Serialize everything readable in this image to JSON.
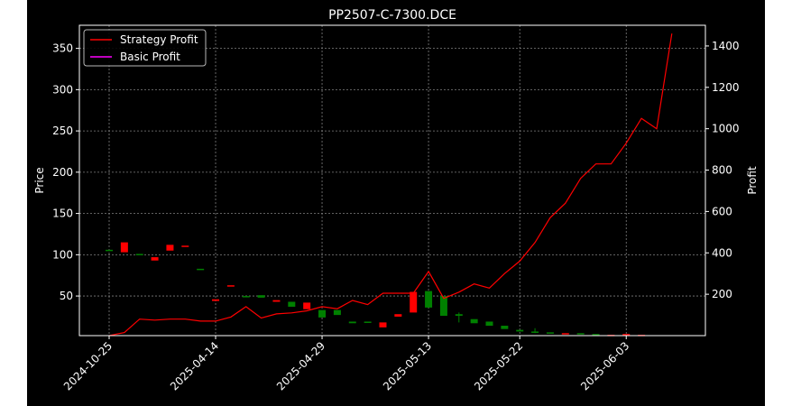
{
  "chart_data": {
    "type": "candlestick+line",
    "title": "PP2507-C-7300.DCE",
    "left_axis": {
      "label": "Price",
      "ylim": [
        2,
        378
      ],
      "ticks": [
        50,
        100,
        150,
        200,
        250,
        300,
        350
      ]
    },
    "right_axis": {
      "label": "Profit",
      "ylim": [
        0,
        1500
      ],
      "ticks": [
        200,
        400,
        600,
        800,
        1000,
        1200,
        1400
      ]
    },
    "x_tick_labels": [
      {
        "index": 0,
        "label": "2024-10-25"
      },
      {
        "index": 7,
        "label": "2025-04-14"
      },
      {
        "index": 14,
        "label": "2025-04-29"
      },
      {
        "index": 21,
        "label": "2025-05-13"
      },
      {
        "index": 27,
        "label": "2025-05-22"
      },
      {
        "index": 34,
        "label": "2025-06-03"
      }
    ],
    "grid": true,
    "legend": {
      "position": "top-left",
      "entries": [
        {
          "label": "Strategy Profit",
          "color": "#ff0000"
        },
        {
          "label": "Basic Profit",
          "color": "#ff00ff"
        }
      ]
    },
    "colors": {
      "background": "#000000",
      "figure_background": "#ffffff",
      "up": "#ff0000",
      "down": "#008000",
      "grid": "#808080",
      "text": "#ffffff"
    },
    "candles": [
      {
        "open": 106,
        "close": 105
      },
      {
        "open": 103,
        "close": 115
      },
      {
        "open": 101,
        "close": 100
      },
      {
        "open": 93,
        "close": 97
      },
      {
        "open": 105,
        "close": 112
      },
      {
        "open": 110,
        "close": 111
      },
      {
        "open": 83,
        "close": 82
      },
      {
        "open": 44,
        "close": 46
      },
      {
        "open": 62,
        "close": 63
      },
      {
        "open": 50,
        "close": 49
      },
      {
        "open": 51,
        "close": 48
      },
      {
        "open": 43,
        "close": 45
      },
      {
        "open": 43,
        "close": 37
      },
      {
        "open": 34,
        "close": 42
      },
      {
        "open": 33,
        "close": 24
      },
      {
        "open": 33,
        "close": 27
      },
      {
        "open": 19,
        "close": 17
      },
      {
        "open": 19,
        "close": 18
      },
      {
        "open": 12,
        "close": 18
      },
      {
        "open": 25,
        "close": 28
      },
      {
        "open": 30,
        "close": 55
      },
      {
        "open": 56,
        "close": 36
      },
      {
        "open": 50,
        "close": 26
      },
      {
        "open": 28,
        "close": 26,
        "high": 30,
        "low": 18
      },
      {
        "open": 22,
        "close": 17
      },
      {
        "open": 19,
        "close": 14
      },
      {
        "open": 14,
        "close": 10
      },
      {
        "open": 9,
        "close": 7
      },
      {
        "open": 7,
        "close": 6,
        "high": 11,
        "low": 5
      },
      {
        "open": 6,
        "close": 5
      },
      {
        "open": 4,
        "close": 5
      },
      {
        "open": 5,
        "close": 4
      },
      {
        "open": 4,
        "close": 3
      },
      {
        "open": 2,
        "close": 3
      },
      {
        "open": 3,
        "close": 4
      },
      {
        "open": 3,
        "close": 3
      }
    ],
    "series": [
      {
        "name": "Strategy Profit",
        "color": "#ff0000",
        "x": [
          0,
          1,
          2,
          3,
          4,
          5,
          6,
          7,
          8,
          9,
          10,
          11,
          12,
          13,
          14,
          15,
          16,
          17,
          18,
          19,
          20,
          21,
          22,
          23,
          24,
          25,
          26,
          27,
          28,
          29,
          30,
          31,
          32,
          33,
          34,
          35,
          36,
          37
        ],
        "values": [
          0,
          15,
          80,
          75,
          80,
          80,
          70,
          70,
          90,
          140,
          85,
          105,
          110,
          120,
          140,
          130,
          170,
          150,
          205,
          205,
          205,
          310,
          180,
          210,
          250,
          230,
          300,
          360,
          450,
          570,
          640,
          760,
          830,
          830,
          930,
          1050,
          1000,
          1460
        ]
      }
    ]
  }
}
